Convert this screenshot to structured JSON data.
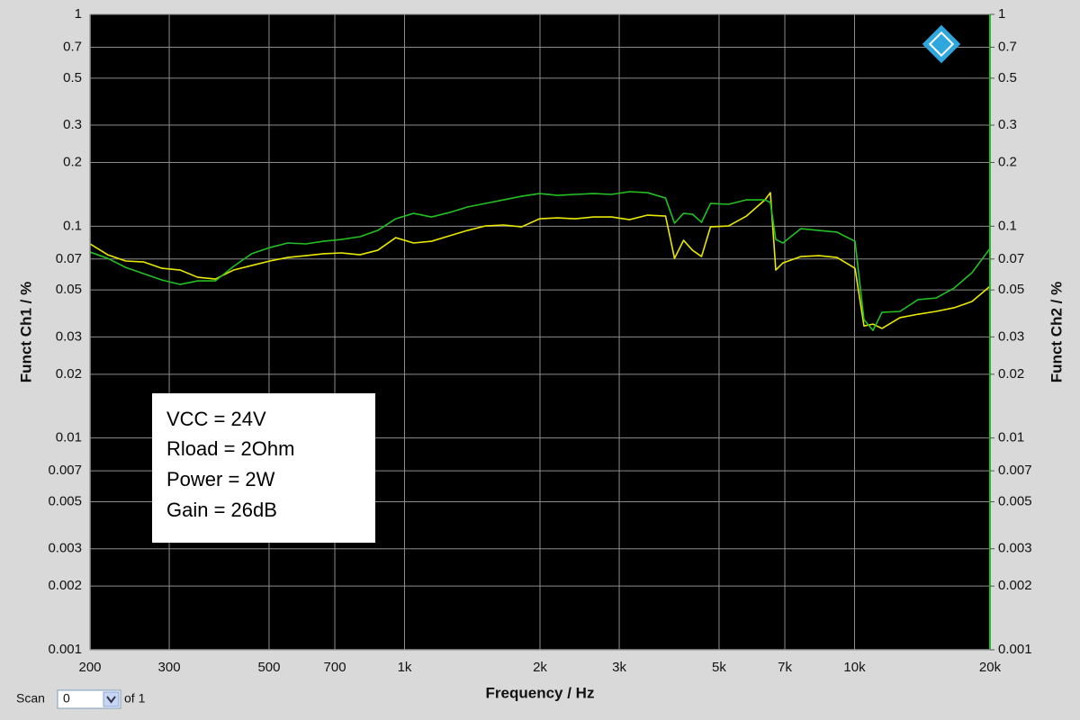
{
  "chart_data": {
    "type": "line",
    "xlabel": "Frequency / Hz",
    "ylabel": "Funct Ch1 / %",
    "y2label": "Funct Ch2 / %",
    "xscale": "log",
    "yscale": "log",
    "grid": true,
    "xlim": [
      200,
      20000
    ],
    "ylim": [
      0.001,
      1
    ],
    "y2lim": [
      0.001,
      1
    ],
    "xticks": [
      200,
      300,
      500,
      700,
      {
        "value": 1000,
        "label": "1k"
      },
      {
        "value": 2000,
        "label": "2k"
      },
      {
        "value": 3000,
        "label": "3k"
      },
      {
        "value": 5000,
        "label": "5k"
      },
      {
        "value": 7000,
        "label": "7k"
      },
      {
        "value": 10000,
        "label": "10k"
      },
      {
        "value": 20000,
        "label": "20k"
      }
    ],
    "yticks": [
      1,
      0.7,
      0.5,
      0.3,
      0.2,
      0.1,
      0.07,
      0.05,
      0.03,
      0.02,
      0.01,
      0.007,
      0.005,
      0.003,
      0.002,
      0.001
    ],
    "y2ticks": [
      1,
      0.7,
      0.5,
      0.3,
      0.2,
      0.1,
      0.07,
      0.05,
      0.03,
      0.02,
      0.01,
      0.007,
      0.005,
      0.003,
      0.002,
      0.001
    ],
    "x": [
      200,
      219,
      240,
      263,
      289,
      317,
      347,
      380,
      417,
      457,
      502,
      550,
      603,
      661,
      725,
      796,
      872,
      956,
      1047,
      1148,
      1259,
      1380,
      1514,
      1660,
      1820,
      1995,
      2188,
      2399,
      2630,
      2884,
      3162,
      3467,
      3802,
      3981,
      4169,
      4365,
      4571,
      4786,
      5248,
      5754,
      6325,
      6501,
      6683,
      6934,
      7603,
      8337,
      9141,
      10024,
      10496,
      10990,
      11508,
      12619,
      13836,
      15171,
      16635,
      18240,
      20000
    ],
    "series": [
      {
        "color": "#e8e800",
        "axis": "y",
        "values": [
          0.0825,
          0.0733,
          0.0685,
          0.0678,
          0.0633,
          0.0621,
          0.0574,
          0.0563,
          0.0621,
          0.0652,
          0.0685,
          0.0712,
          0.0726,
          0.0741,
          0.0748,
          0.0733,
          0.077,
          0.0883,
          0.0833,
          0.0849,
          0.0901,
          0.0955,
          0.1003,
          0.1013,
          0.0993,
          0.1084,
          0.1095,
          0.1084,
          0.1106,
          0.1106,
          0.1074,
          0.1128,
          0.1117,
          0.0705,
          0.0858,
          0.077,
          0.0719,
          0.0993,
          0.1003,
          0.1117,
          0.1332,
          0.144,
          0.0621,
          0.0671,
          0.0719,
          0.0726,
          0.0712,
          0.0633,
          0.0338,
          0.0345,
          0.0329,
          0.037,
          0.0384,
          0.0396,
          0.0412,
          0.0441,
          0.052
        ]
      },
      {
        "color": "#22c022",
        "axis": "y2",
        "values": [
          0.0755,
          0.0705,
          0.0639,
          0.0597,
          0.0557,
          0.0531,
          0.0552,
          0.0552,
          0.0646,
          0.0741,
          0.0793,
          0.0833,
          0.0825,
          0.0849,
          0.0866,
          0.0892,
          0.0955,
          0.1084,
          0.115,
          0.1106,
          0.1161,
          0.1232,
          0.1281,
          0.1332,
          0.1385,
          0.1426,
          0.1399,
          0.1413,
          0.1426,
          0.1413,
          0.1455,
          0.144,
          0.1358,
          0.1033,
          0.115,
          0.1139,
          0.1043,
          0.1281,
          0.1269,
          0.1332,
          0.1332,
          0.1294,
          0.0866,
          0.0833,
          0.0974,
          0.0955,
          0.0937,
          0.0849,
          0.0362,
          0.0322,
          0.0392,
          0.0396,
          0.045,
          0.0458,
          0.051,
          0.0603,
          0.0785
        ]
      }
    ],
    "annotation": [
      "VCC = 24V",
      "Rload = 2Ohm",
      "Power = 2W",
      "Gain = 26dB"
    ]
  },
  "scan": {
    "label": "Scan",
    "value": "0",
    "of": "of 1"
  }
}
